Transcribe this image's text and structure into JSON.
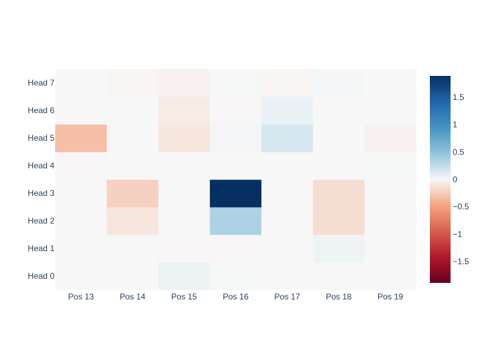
{
  "chart_data": {
    "type": "heatmap",
    "title": "",
    "xlabel": "",
    "ylabel": "",
    "x": [
      "Pos 13",
      "Pos 14",
      "Pos 15",
      "Pos 16",
      "Pos 17",
      "Pos 18",
      "Pos 19"
    ],
    "y": [
      "Head 0",
      "Head 1",
      "Head 2",
      "Head 3",
      "Head 4",
      "Head 5",
      "Head 6",
      "Head 7"
    ],
    "z": [
      [
        0.0,
        0.0,
        0.05,
        0.01,
        0.0,
        0.0,
        0.0
      ],
      [
        0.0,
        0.0,
        -0.01,
        -0.01,
        0.0,
        0.04,
        0.0
      ],
      [
        0.0,
        -0.1,
        0.0,
        0.35,
        0.0,
        -0.15,
        0.0
      ],
      [
        0.0,
        -0.22,
        0.0,
        1.89,
        0.0,
        -0.15,
        0.0
      ],
      [
        -0.01,
        0.0,
        0.0,
        0.0,
        0.0,
        0.0,
        0.01
      ],
      [
        -0.32,
        0.0,
        -0.1,
        0.02,
        0.15,
        0.0,
        -0.03
      ],
      [
        0.0,
        0.0,
        -0.07,
        -0.01,
        0.06,
        0.0,
        0.0
      ],
      [
        0.0,
        -0.02,
        -0.03,
        0.01,
        -0.02,
        0.02,
        0.0
      ]
    ],
    "zmin": -1.89,
    "zmax": 1.89,
    "colorscale": "RdBu",
    "colorbar_ticks": [
      "1.5",
      "1",
      "0.5",
      "0",
      "−0.5",
      "−1",
      "−1.5"
    ],
    "colorbar_tick_values": [
      1.5,
      1,
      0.5,
      0,
      -0.5,
      -1,
      -1.5
    ]
  }
}
